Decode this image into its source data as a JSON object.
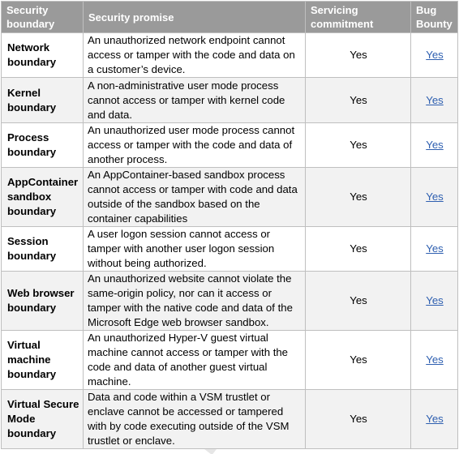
{
  "headers": {
    "boundary": "Security boundary",
    "promise": "Security promise",
    "commitment": "Servicing commitment",
    "bounty": "Bug Bounty"
  },
  "rows": [
    {
      "boundary": "Network boundary",
      "promise": "An unauthorized network endpoint cannot access or tamper with the code and data on a customer’s device.",
      "commitment": "Yes",
      "bounty": "Yes"
    },
    {
      "boundary": "Kernel boundary",
      "promise": "A non-administrative user mode process cannot access or tamper with kernel code and data.",
      "commitment": "Yes",
      "bounty": "Yes"
    },
    {
      "boundary": "Process boundary",
      "promise": "An unauthorized user mode process cannot access or tamper with the code and data of another process.",
      "commitment": "Yes",
      "bounty": "Yes"
    },
    {
      "boundary": "AppContainer sandbox boundary",
      "promise": "An AppContainer-based sandbox process cannot access or tamper with code and data outside of the sandbox based on the container capabilities",
      "commitment": "Yes",
      "bounty": "Yes"
    },
    {
      "boundary": "Session boundary",
      "promise": "A user logon session cannot access or tamper with another user logon session without being authorized.",
      "commitment": "Yes",
      "bounty": "Yes"
    },
    {
      "boundary": "Web browser boundary",
      "promise": "An unauthorized website cannot violate the same-origin policy, nor can it access or tamper with the native code and data of the Microsoft Edge web browser sandbox.",
      "commitment": "Yes",
      "bounty": "Yes"
    },
    {
      "boundary": "Virtual machine boundary",
      "promise": "An unauthorized Hyper-V guest virtual machine cannot access or tamper with the code and data of another guest virtual machine.",
      "commitment": "Yes",
      "bounty": "Yes"
    },
    {
      "boundary": "Virtual Secure Mode boundary",
      "promise": "Data and code within a VSM trustlet or enclave cannot be accessed or tampered with by code executing outside of the VSM trustlet or enclave.",
      "commitment": "Yes",
      "bounty": "Yes"
    }
  ]
}
